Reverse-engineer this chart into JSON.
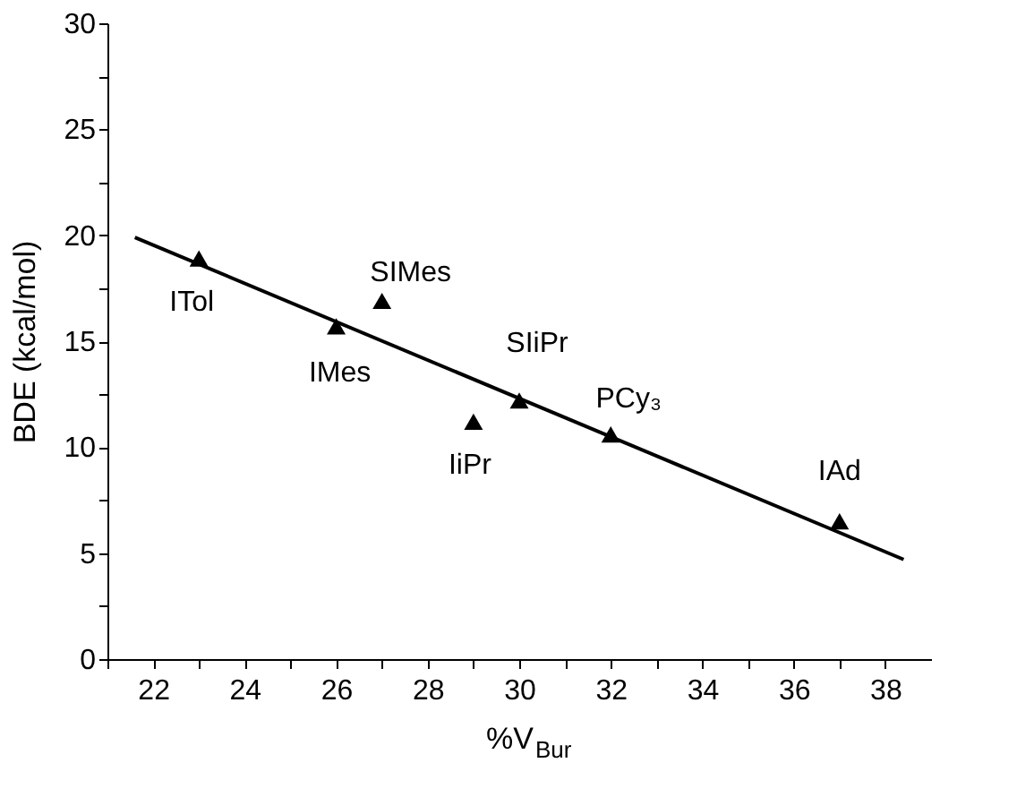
{
  "chart_data": {
    "type": "scatter",
    "xlabel": "%V$_{Bur}$",
    "ylabel": "BDE (kcal/mol)",
    "xlim": [
      21,
      39
    ],
    "ylim": [
      0,
      30
    ],
    "xticks": [
      {
        "value": 21,
        "label": null
      },
      22,
      {
        "value": 23,
        "label": null
      },
      24,
      {
        "value": 25,
        "label": null
      },
      26,
      {
        "value": 27,
        "label": null
      },
      28,
      {
        "value": 29,
        "label": null
      },
      30,
      {
        "value": 31,
        "label": null
      },
      32,
      {
        "value": 33,
        "label": null
      },
      34,
      {
        "value": 35,
        "label": null
      },
      36,
      {
        "value": 37,
        "label": null
      },
      38
    ],
    "yticks": [
      0,
      {
        "value": 2.5,
        "label": null
      },
      5,
      {
        "value": 7.5,
        "label": null
      },
      10,
      {
        "value": 12.5,
        "label": null
      },
      15,
      {
        "value": 17.5,
        "label": null
      },
      20,
      {
        "value": 22.5,
        "label": null
      },
      25,
      {
        "value": 27.5,
        "label": null
      },
      30
    ],
    "grid": false,
    "series": [
      {
        "color": "#000000",
        "marker": "triangle",
        "x": [
          23,
          26,
          27,
          29,
          30,
          32,
          37
        ],
        "values": [
          18.9,
          15.7,
          16.9,
          11.2,
          12.2,
          10.6,
          6.5
        ]
      },
      {
        "type": "line",
        "color": "#000000",
        "line_style": "solid",
        "x": [
          21.6,
          38.4
        ],
        "values": [
          19.9,
          4.7
        ]
      }
    ],
    "annotations": [
      {
        "text": "ITol",
        "x": 23,
        "y": 18.9
      },
      {
        "text": "IMes",
        "x": 26,
        "y": 15.7
      },
      {
        "text": "SIMes",
        "x": 27,
        "y": 16.9
      },
      {
        "text": "IiPr",
        "x": 29,
        "y": 11.2
      },
      {
        "text": "SIiPr",
        "x": 30,
        "y": 12.2
      },
      {
        "text": "PCy₃",
        "x": 32,
        "y": 10.6
      },
      {
        "text": "IAd",
        "x": 37,
        "y": 6.5
      }
    ]
  }
}
